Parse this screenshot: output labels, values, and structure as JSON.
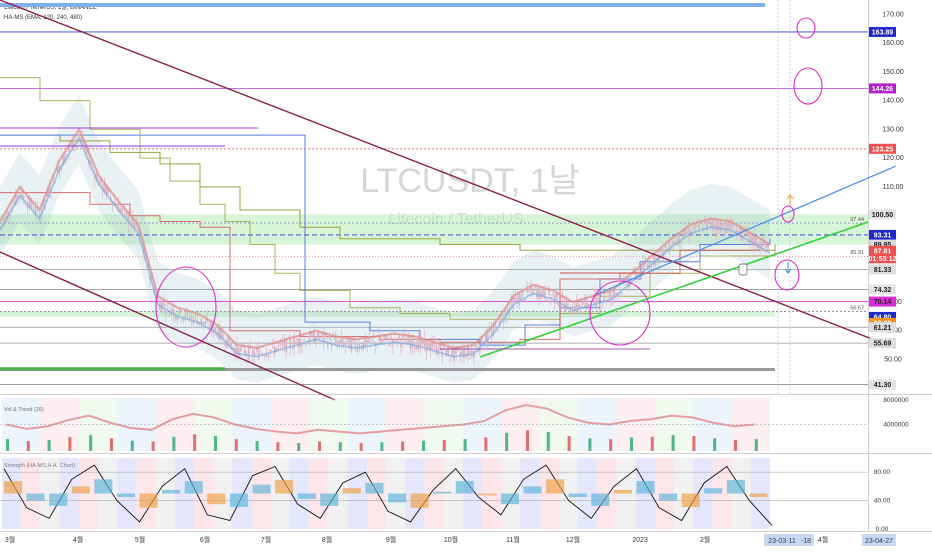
{
  "header": {
    "symbol_line": "Litecoin / TetherUS, 1일, BINANCE",
    "indicator_line": "HA-MS (EMA, 120, 240, 480)"
  },
  "watermark": {
    "title": "LTCUSDT, 1날",
    "subtitle": "Litecoin / TetherUS"
  },
  "panes": {
    "volume_label": "Vol & Trend (26)",
    "strength_label": "Strength (HA-MS,H.A. Chart)"
  },
  "colors": {
    "candle": "#d9b8c6",
    "line_blue": "#5b7fe0",
    "line_olive": "#9aa23a",
    "line_red": "#d44a4a",
    "trend_green": "#35d13a",
    "trend_blue": "#4a8fe8",
    "channel_maroon": "#8e1f4a",
    "circle_pink": "#e02cc5",
    "zone_green": "#b9ecb6",
    "axis_text": "#333333"
  },
  "chart_data": [
    {
      "type": "line",
      "pane": "price",
      "title": "LTCUSDT, 1날",
      "ylim": [
        38,
        175
      ],
      "x_tick_labels": [
        "3월",
        "4월",
        "5월",
        "6월",
        "7월",
        "8월",
        "9월",
        "10월",
        "11월",
        "12월",
        "2023",
        "2월",
        "3월",
        "4월"
      ],
      "y_ticks": [
        50.0,
        60.0,
        70.0,
        80.0,
        90.0,
        100.0,
        110.0,
        120.0,
        130.0,
        140.0,
        150.0,
        160.0,
        170.0
      ],
      "price_labels": [
        {
          "text": "163.89",
          "value": 163.89,
          "color": "#1f2ac8"
        },
        {
          "text": "144.26",
          "value": 144.26,
          "color": "#b21fd0"
        },
        {
          "text": "123.25",
          "value": 123.25,
          "color": "#f05050"
        },
        {
          "text": "100.50",
          "value": 100.5,
          "color": "#e3e3e3"
        },
        {
          "text": "93.31",
          "value": 93.31,
          "color": "#1f2ac8"
        },
        {
          "text": "89.95",
          "value": 89.95,
          "color": "#d9d9d9"
        },
        {
          "text": "87.81",
          "value": 87.81,
          "color": "#f05050"
        },
        {
          "text": "01:55:12",
          "value": 85.2,
          "color": "#f05050"
        },
        {
          "text": "81.33",
          "value": 81.33,
          "color": "#dddddd"
        },
        {
          "text": "74.32",
          "value": 74.32,
          "color": "#e3e3e3"
        },
        {
          "text": "70.14",
          "value": 70.14,
          "color": "#d92cd9"
        },
        {
          "text": "64.80",
          "value": 64.8,
          "color": "#1f2ac8"
        },
        {
          "text": "62.69",
          "value": 62.69,
          "color": "#f7941d"
        },
        {
          "text": "61.21",
          "value": 61.21,
          "color": "#dddddd"
        },
        {
          "text": "55.69",
          "value": 55.69,
          "color": "#dddddd"
        },
        {
          "text": "41.30",
          "value": 41.3,
          "color": "#e3e3e3"
        }
      ],
      "inline_labels": [
        {
          "text": "97.44",
          "value": 97.44
        },
        {
          "text": "85.91",
          "value": 85.91
        },
        {
          "text": "66.67",
          "value": 66.67
        }
      ],
      "series": [
        {
          "values": [
            96,
            108,
            100,
            117,
            128,
            112,
            103,
            95,
            70,
            66,
            64,
            60,
            53,
            52,
            54,
            56,
            58,
            56,
            55,
            56,
            57,
            56,
            54,
            52,
            53,
            60,
            70,
            74,
            72,
            68,
            70,
            72,
            78,
            84,
            90,
            95,
            97,
            96,
            92,
            88
          ]
        }
      ]
    },
    {
      "type": "bar",
      "pane": "volume",
      "title": "Vol & Trend (26)",
      "ylim": [
        0,
        8000000
      ],
      "y_ticks": [
        4000000,
        8000000
      ],
      "values": [
        3,
        2.5,
        2.8,
        3.5,
        4,
        3.2,
        2.6,
        2.4,
        3.6,
        4.2,
        3.8,
        3,
        2.5,
        2.2,
        2,
        2.4,
        2.2,
        2,
        2.2,
        2.4,
        2.6,
        2.8,
        3,
        3.4,
        4.6,
        5.2,
        4.8,
        3.8,
        3.2,
        3,
        3.4,
        3.6,
        4,
        3.8,
        3.2,
        2.8,
        3
      ]
    },
    {
      "type": "line",
      "pane": "strength",
      "title": "Strength (HA-MS,H.A. Chart)",
      "ylim": [
        0,
        100
      ],
      "y_ticks": [
        0.0,
        40.0,
        80.0
      ],
      "values": [
        85,
        30,
        15,
        70,
        90,
        40,
        10,
        60,
        85,
        20,
        12,
        75,
        88,
        35,
        15,
        65,
        80,
        25,
        10,
        55,
        85,
        45,
        20,
        70,
        90,
        40,
        15,
        60,
        85,
        30,
        12,
        65,
        88,
        40,
        5
      ]
    }
  ],
  "bottom_axis": {
    "labels": [
      "3월",
      "4월",
      "5월",
      "6월",
      "7월",
      "8월",
      "9월",
      "10월",
      "11월",
      "12월",
      "2023",
      "2월",
      "3",
      "4월"
    ],
    "cursor_date": "23-03-11",
    "cursor_offset": "-18",
    "end_date": "23-04-27"
  }
}
